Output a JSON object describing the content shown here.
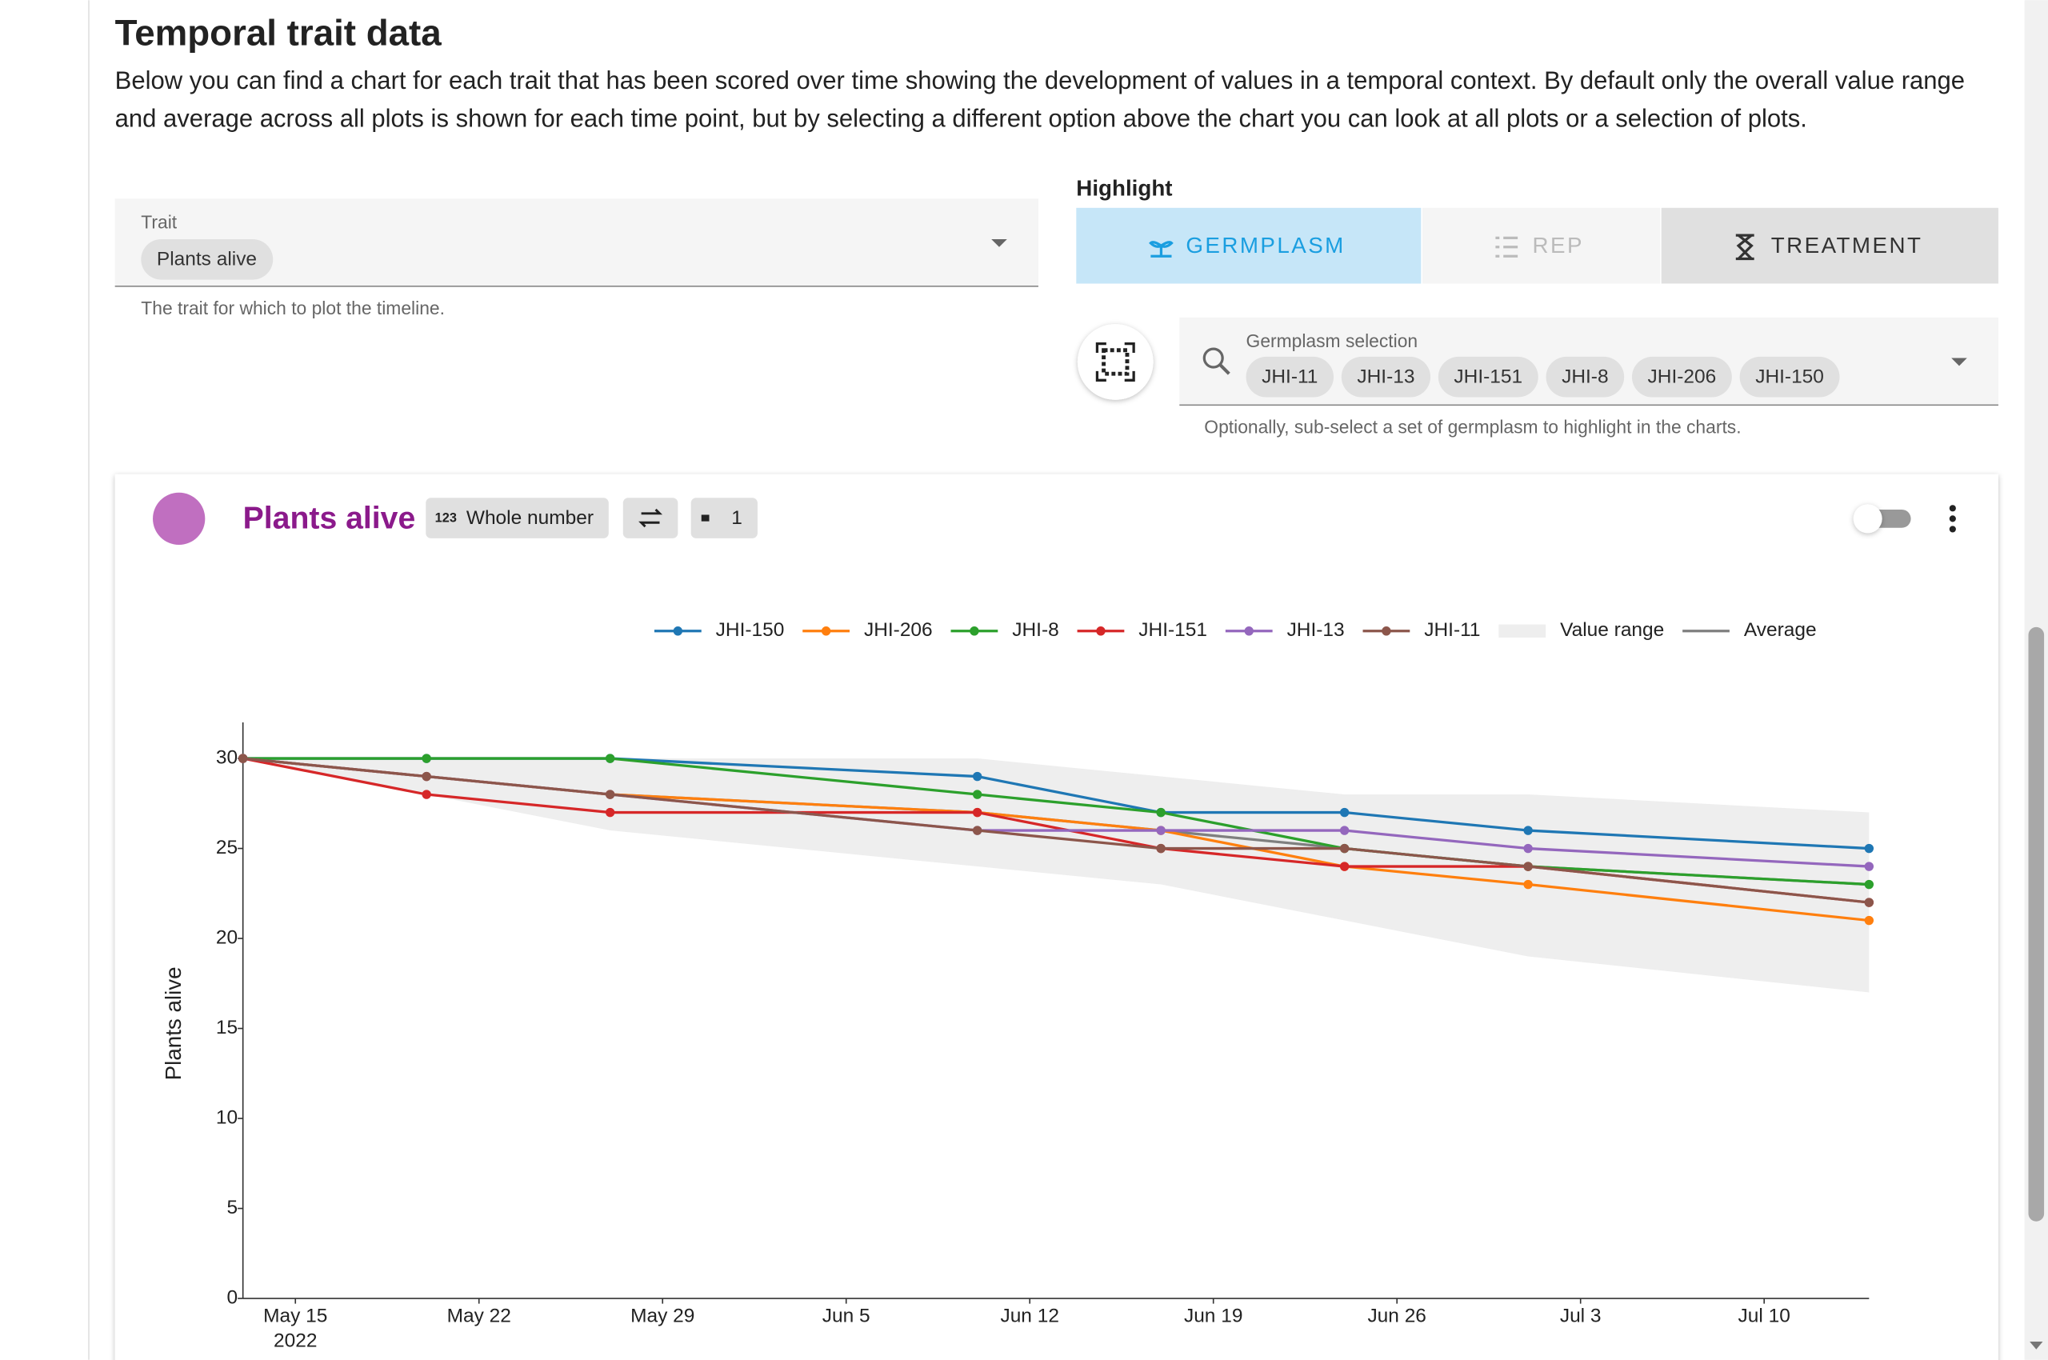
{
  "header": {
    "title": "Temporal trait data",
    "description": "Below you can find a chart for each trait that has been scored over time showing the development of values in a temporal context. By default only the overall value range and average across all plots is shown for each time point, but by selecting a different option above the chart you can look at all plots or a selection of plots."
  },
  "trait_field": {
    "label": "Trait",
    "value": "Plants alive",
    "helper": "The trait for which to plot the timeline."
  },
  "highlight": {
    "label": "Highlight",
    "options": [
      "GERMPLASM",
      "REP",
      "TREATMENT"
    ]
  },
  "germplasm_field": {
    "label": "Germplasm selection",
    "chips": [
      "JHI-11",
      "JHI-13",
      "JHI-151",
      "JHI-8",
      "JHI-206",
      "JHI-150"
    ],
    "helper": "Optionally, sub-select a set of germplasm to highlight in the charts."
  },
  "card": {
    "title": "Plants alive",
    "type_icon": "123",
    "type_label": "Whole number",
    "count": "1"
  },
  "chart_data": {
    "type": "line",
    "ylabel": "Plants alive",
    "x": [
      "2022-05-13",
      "2022-05-20",
      "2022-05-27",
      "2022-06-10",
      "2022-06-17",
      "2022-06-24",
      "2022-07-01",
      "2022-07-14"
    ],
    "xlim": [
      "2022-05-13",
      "2022-07-14"
    ],
    "xticks": [
      {
        "value": "2022-05-15",
        "label": "May 15"
      },
      {
        "value": "2022-05-22",
        "label": "May 22"
      },
      {
        "value": "2022-05-29",
        "label": "May 29"
      },
      {
        "value": "2022-06-05",
        "label": "Jun 5"
      },
      {
        "value": "2022-06-12",
        "label": "Jun 12"
      },
      {
        "value": "2022-06-19",
        "label": "Jun 19"
      },
      {
        "value": "2022-06-26",
        "label": "Jun 26"
      },
      {
        "value": "2022-07-03",
        "label": "Jul 3"
      },
      {
        "value": "2022-07-10",
        "label": "Jul 10"
      }
    ],
    "xyear": "2022",
    "ylim": [
      0,
      32
    ],
    "yticks": [
      0,
      5,
      10,
      15,
      20,
      25,
      30
    ],
    "range": {
      "name": "Value range",
      "color": "#eeeeee",
      "lower": [
        30,
        28,
        26,
        24,
        23,
        21,
        19,
        17
      ],
      "upper": [
        30,
        30,
        30,
        30,
        29,
        28,
        28,
        27
      ]
    },
    "series": [
      {
        "name": "JHI-150",
        "color": "#1f77b4",
        "markers": true,
        "values": [
          30,
          30,
          30,
          29,
          27,
          27,
          26,
          25
        ]
      },
      {
        "name": "JHI-206",
        "color": "#ff7f0e",
        "markers": true,
        "values": [
          30,
          29,
          28,
          27,
          26,
          24,
          23,
          21
        ]
      },
      {
        "name": "JHI-8",
        "color": "#2ca02c",
        "markers": true,
        "values": [
          30,
          30,
          30,
          28,
          27,
          25,
          24,
          23
        ]
      },
      {
        "name": "JHI-151",
        "color": "#d62728",
        "markers": true,
        "values": [
          30,
          28,
          27,
          27,
          25,
          24,
          24,
          22
        ]
      },
      {
        "name": "JHI-13",
        "color": "#9467bd",
        "markers": true,
        "values": [
          30,
          29,
          28,
          26,
          26,
          26,
          25,
          24
        ]
      },
      {
        "name": "JHI-11",
        "color": "#8c564b",
        "markers": true,
        "values": [
          30,
          29,
          28,
          26,
          25,
          25,
          24,
          22
        ]
      },
      {
        "name": "Average",
        "color": "#7f7f7f",
        "markers": false,
        "values": [
          30,
          29,
          28,
          27,
          26,
          25,
          24,
          23
        ]
      }
    ]
  }
}
